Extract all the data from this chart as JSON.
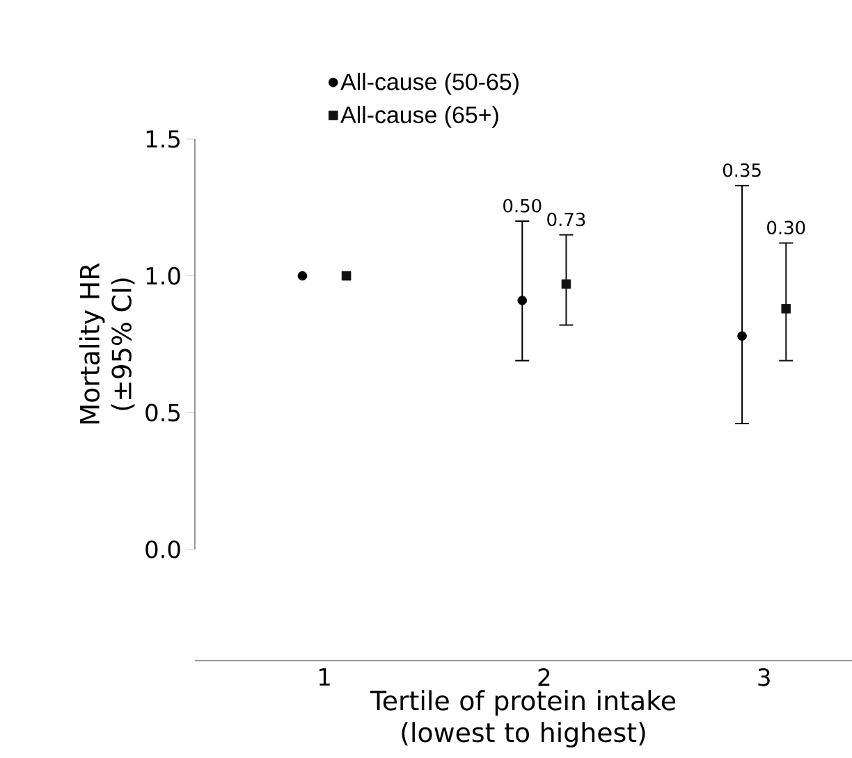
{
  "chart_data": {
    "type": "scatter",
    "xlabel": "Tertile of protein intake (lowest to highest)",
    "ylabel": "Mortality HR (±95% CI)",
    "categories": [
      "1",
      "2",
      "3"
    ],
    "ylim": [
      0,
      1.5
    ],
    "yticks": [
      {
        "value": 0,
        "label": "0.0"
      },
      {
        "value": 0.5,
        "label": "0.5"
      },
      {
        "value": 1,
        "label": "1.0"
      },
      {
        "value": 1.5,
        "label": "1.5"
      }
    ],
    "legend": "top",
    "grid": false,
    "annotations": [
      "0.50",
      "0.73",
      "0.35",
      "0.30"
    ],
    "series": [
      {
        "name": "All-cause (50-65)",
        "color": "#000000",
        "marker": "circle",
        "values": [
          1.0,
          0.91,
          0.78
        ],
        "errors": [
          null,
          [
            0.69,
            1.2
          ],
          [
            0.46,
            1.33
          ]
        ]
      },
      {
        "name": "All-cause (65+)",
        "color": "#111111",
        "marker": "square",
        "values": [
          1.0,
          0.97,
          0.88
        ],
        "errors": [
          null,
          [
            0.82,
            1.15
          ],
          [
            0.69,
            1.12
          ]
        ]
      }
    ]
  }
}
